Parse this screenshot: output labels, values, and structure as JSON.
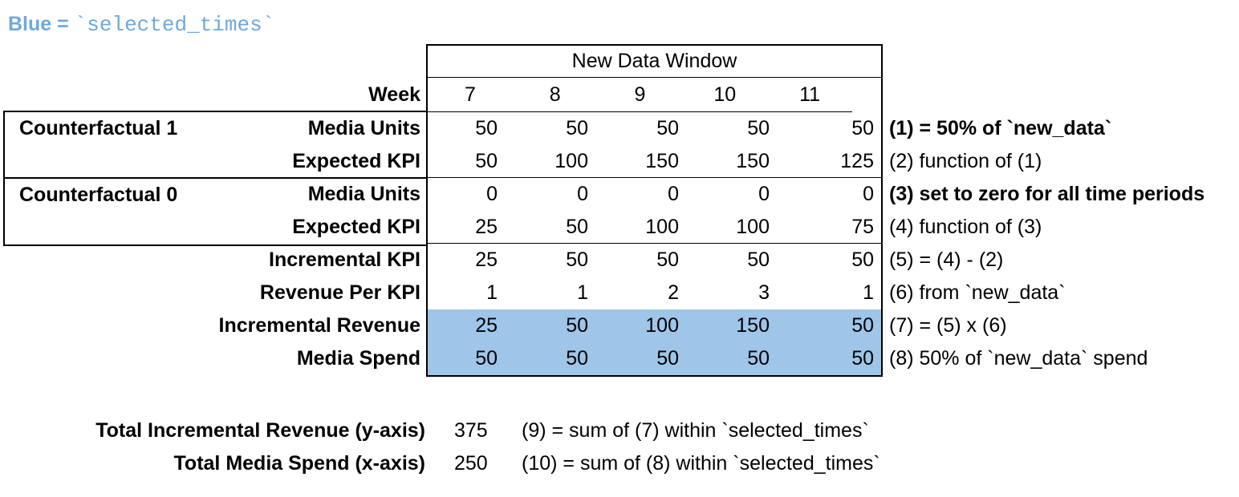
{
  "legend": {
    "prefix": "Blue = ",
    "code": "`selected_times`"
  },
  "table": {
    "header": "New Data Window",
    "week_label": "Week",
    "weeks": [
      "7",
      "8",
      "9",
      "10",
      "11"
    ],
    "groups": [
      {
        "label": "Counterfactual 1"
      },
      {
        "label": "Counterfactual 0"
      }
    ],
    "rows": [
      {
        "label": "Media Units",
        "values": [
          "50",
          "50",
          "50",
          "50",
          "50"
        ],
        "annotation": "(1) = 50% of `new_data`"
      },
      {
        "label": "Expected KPI",
        "values": [
          "50",
          "100",
          "150",
          "150",
          "125"
        ],
        "annotation": "(2) function of (1)"
      },
      {
        "label": "Media Units",
        "values": [
          "0",
          "0",
          "0",
          "0",
          "0"
        ],
        "annotation": "(3) set to zero for all time periods"
      },
      {
        "label": "Expected KPI",
        "values": [
          "25",
          "50",
          "100",
          "100",
          "75"
        ],
        "annotation": "(4) function of (3)"
      },
      {
        "label": "Incremental KPI",
        "values": [
          "25",
          "50",
          "50",
          "50",
          "50"
        ],
        "annotation": "(5) = (4) - (2)"
      },
      {
        "label": "Revenue Per KPI",
        "values": [
          "1",
          "1",
          "2",
          "3",
          "1"
        ],
        "annotation": "(6) from `new_data`"
      },
      {
        "label": "Incremental Revenue",
        "values": [
          "25",
          "50",
          "100",
          "150",
          "50"
        ],
        "annotation": "(7) = (5) x (6)"
      },
      {
        "label": "Media Spend",
        "values": [
          "50",
          "50",
          "50",
          "50",
          "50"
        ],
        "annotation": "(8) 50% of `new_data` spend"
      }
    ]
  },
  "totals": [
    {
      "label": "Total Incremental Revenue (y-axis)",
      "value": "375",
      "annotation": "(9) = sum of (7) within `selected_times`"
    },
    {
      "label": "Total Media Spend (x-axis)",
      "value": "250",
      "annotation": "(10) = sum of (8) within `selected_times`"
    }
  ],
  "colors": {
    "highlight_blue": "#9FC5E8",
    "legend_blue": "#6FA8DC"
  }
}
